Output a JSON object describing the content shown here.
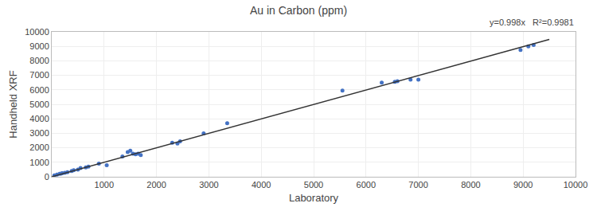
{
  "chart_data": {
    "type": "scatter",
    "title": "Au in Carbon (ppm)",
    "xlabel": "Laboratory",
    "ylabel": "Handheld XRF",
    "annotations": [
      "y=0.998x   R²=0.9981"
    ],
    "series": [
      {
        "type": "scatter",
        "marker": "circle",
        "color": "#4472C4",
        "x": [
          50,
          100,
          150,
          180,
          200,
          250,
          300,
          380,
          420,
          500,
          550,
          650,
          700,
          900,
          1050,
          1350,
          1450,
          1500,
          1550,
          1600,
          1650,
          1700,
          2300,
          2400,
          2450,
          2900,
          3350,
          5550,
          6300,
          6550,
          6600,
          6850,
          7000,
          8950,
          9100,
          9200
        ],
        "values": [
          100,
          150,
          200,
          220,
          250,
          280,
          320,
          400,
          450,
          500,
          600,
          650,
          700,
          900,
          800,
          1400,
          1700,
          1800,
          1600,
          1550,
          1600,
          1500,
          2350,
          2300,
          2450,
          3000,
          3700,
          5950,
          6500,
          6550,
          6600,
          6700,
          6700,
          8750,
          9000,
          9100
        ]
      },
      {
        "type": "line",
        "line_style": "solid",
        "color": "#333333",
        "x": [
          0,
          9500
        ],
        "values": [
          0,
          9481
        ]
      }
    ],
    "xlim": [
      0,
      10000
    ],
    "ylim": [
      0,
      10000
    ],
    "xticks": [
      1000,
      2000,
      3000,
      4000,
      5000,
      6000,
      7000,
      8000,
      9000,
      10000
    ],
    "yticks": [
      0,
      1000,
      2000,
      3000,
      4000,
      5000,
      6000,
      7000,
      8000,
      9000,
      10000
    ],
    "grid": true
  }
}
